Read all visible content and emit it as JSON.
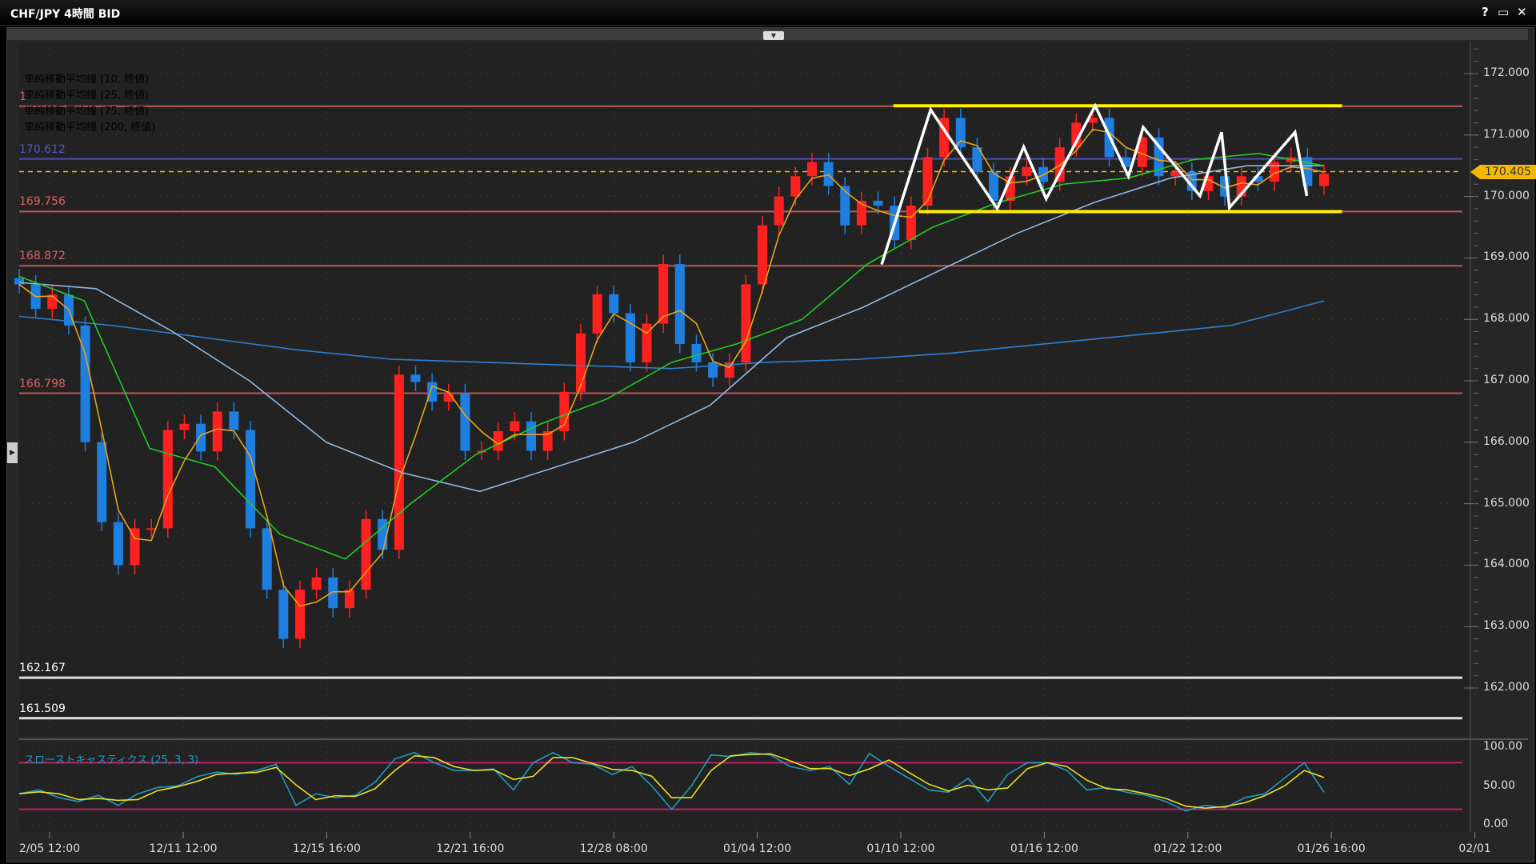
{
  "window": {
    "title": "CHF/JPY 4時間 BID",
    "help": "?",
    "maximize": "▭",
    "close": "✕"
  },
  "legend": [
    {
      "label": "単純移動平均線 (10, 終値)",
      "color": "#e8a317"
    },
    {
      "label": "単純移動平均線 (25, 終値)",
      "color": "#22cc22"
    },
    {
      "label": "単純移動平均線 (75, 終値)",
      "color": "#8fb8e0"
    },
    {
      "label": "単純移動平均線 (200, 終値)",
      "color": "#2f7fd0"
    }
  ],
  "current_price": {
    "label": "170.405",
    "value": 170.405,
    "color": "#f5b800"
  },
  "hlines": [
    {
      "value": 171.47,
      "label": "1",
      "color": "#e06060"
    },
    {
      "value": 170.612,
      "label": "170.612",
      "color": "#5555cc"
    },
    {
      "value": 169.756,
      "label": "169.756",
      "color": "#e06060"
    },
    {
      "value": 168.872,
      "label": "168.872",
      "color": "#e06060"
    },
    {
      "value": 166.798,
      "label": "166.798",
      "color": "#e06060"
    },
    {
      "value": 162.167,
      "label": "162.167",
      "color": "#ffffff"
    },
    {
      "value": 161.509,
      "label": "161.509",
      "color": "#ffffff"
    }
  ],
  "stoch": {
    "title": "スローストキャスティクス (25, 3, 3)",
    "levels": [
      80,
      20
    ],
    "axis": [
      "100.00",
      "50.00",
      "0.00"
    ]
  },
  "chart_data": {
    "type": "candlestick",
    "ylim": [
      161.2,
      172.5
    ],
    "yticks": [
      "172.000",
      "171.000",
      "170.000",
      "169.000",
      "168.000",
      "167.000",
      "166.000",
      "165.000",
      "164.000",
      "163.000",
      "162.000"
    ],
    "xticks": [
      "2/05 12:00",
      "12/11 12:00",
      "12/15 16:00",
      "12/21 16:00",
      "12/28 08:00",
      "01/04 12:00",
      "01/10 12:00",
      "01/16 12:00",
      "01/22 12:00",
      "01/26 16:00",
      "02/01"
    ],
    "colors": {
      "up": "#ff2020",
      "down": "#1e7fe0"
    },
    "closes": [
      168.57,
      168.17,
      168.4,
      167.9,
      166.0,
      164.7,
      164.0,
      164.6,
      164.6,
      166.2,
      166.3,
      165.85,
      166.5,
      166.2,
      164.6,
      163.6,
      162.8,
      163.6,
      163.8,
      163.3,
      163.6,
      164.75,
      164.25,
      167.1,
      166.98,
      166.66,
      166.8,
      165.86,
      165.86,
      166.18,
      166.34,
      165.86,
      166.18,
      166.82,
      167.77,
      168.41,
      168.1,
      167.3,
      167.93,
      168.9,
      167.6,
      167.3,
      167.05,
      167.3,
      168.57,
      169.53,
      170.0,
      170.33,
      170.56,
      170.17,
      169.53,
      169.93,
      169.85,
      169.29,
      169.85,
      170.64,
      171.28,
      170.8,
      170.4,
      169.93,
      170.33,
      170.48,
      170.24,
      170.8,
      171.2,
      171.28,
      170.64,
      170.48,
      170.96,
      170.33,
      170.4,
      170.09,
      170.33,
      170.0,
      170.33,
      170.24,
      170.56,
      170.64,
      170.17,
      170.37
    ],
    "ma25": [
      168.7,
      168.3,
      165.9,
      165.6,
      164.5,
      164.1,
      165.0,
      165.8,
      166.3,
      166.7,
      167.3,
      167.6,
      168.0,
      168.9,
      169.5,
      169.9,
      170.2,
      170.3,
      170.6,
      170.7,
      170.5
    ],
    "ma75": [
      168.6,
      168.5,
      167.8,
      167.0,
      166.0,
      165.5,
      165.2,
      165.6,
      166.0,
      166.6,
      167.7,
      168.2,
      168.8,
      169.4,
      169.9,
      170.3,
      170.5,
      170.5
    ],
    "ma200": [
      168.05,
      167.9,
      167.7,
      167.5,
      167.35,
      167.3,
      167.25,
      167.2,
      167.3,
      167.35,
      167.45,
      167.6,
      167.75,
      167.9,
      168.3
    ],
    "stoch_k": [
      40,
      45,
      35,
      30,
      38,
      25,
      40,
      48,
      50,
      62,
      68,
      65,
      70,
      78,
      25,
      40,
      35,
      38,
      55,
      85,
      93,
      80,
      70,
      70,
      72,
      45,
      80,
      93,
      80,
      78,
      65,
      75,
      50,
      20,
      50,
      90,
      88,
      93,
      90,
      75,
      70,
      75,
      52,
      92,
      75,
      60,
      45,
      42,
      60,
      30,
      65,
      80,
      80,
      70,
      45,
      48,
      42,
      38,
      30,
      18,
      25,
      22,
      35,
      40,
      60,
      80,
      42
    ]
  }
}
